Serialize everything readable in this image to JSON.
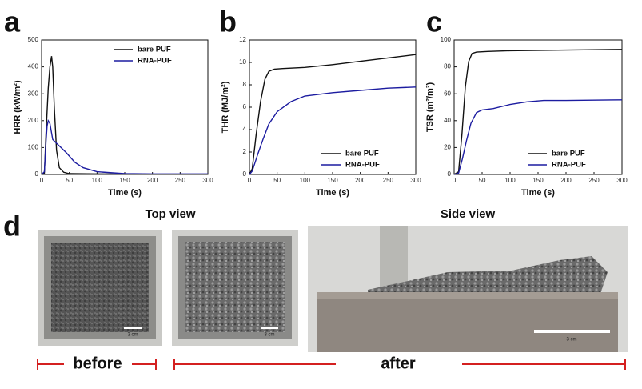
{
  "chart_data": [
    {
      "type": "line",
      "panel": "a",
      "xlabel": "Time (s)",
      "ylabel": "HRR (kW/m²)",
      "xlim": [
        0,
        300
      ],
      "xticks": [
        0,
        50,
        100,
        150,
        200,
        250,
        300
      ],
      "ylim": [
        0,
        500
      ],
      "yticks": [
        0,
        100,
        200,
        300,
        400,
        500
      ],
      "legend": "upper right",
      "series": [
        {
          "name": "bare PUF",
          "color": "#111111",
          "x": [
            0,
            5,
            8,
            12,
            15,
            18,
            20,
            23,
            27,
            32,
            40,
            50,
            100,
            200,
            300
          ],
          "values": [
            0,
            5,
            150,
            320,
            400,
            440,
            400,
            250,
            90,
            25,
            8,
            3,
            2,
            1,
            1
          ]
        },
        {
          "name": "RNA-PUF",
          "color": "#1c1ca0",
          "x": [
            0,
            5,
            8,
            10,
            12,
            15,
            20,
            25,
            35,
            45,
            60,
            75,
            100,
            150,
            200,
            300
          ],
          "values": [
            0,
            10,
            120,
            180,
            200,
            190,
            130,
            120,
            100,
            80,
            45,
            25,
            10,
            3,
            2,
            2
          ]
        }
      ]
    },
    {
      "type": "line",
      "panel": "b",
      "xlabel": "Time (s)",
      "ylabel": "THR (MJ/m²)",
      "xlim": [
        0,
        300
      ],
      "xticks": [
        0,
        50,
        100,
        150,
        200,
        250,
        300
      ],
      "ylim": [
        0,
        12
      ],
      "yticks": [
        0,
        2,
        4,
        6,
        8,
        10,
        12
      ],
      "legend": "lower right",
      "series": [
        {
          "name": "bare PUF",
          "color": "#111111",
          "x": [
            0,
            5,
            12,
            20,
            28,
            35,
            45,
            60,
            100,
            150,
            200,
            250,
            300
          ],
          "values": [
            0,
            0.5,
            3.5,
            6.5,
            8.5,
            9.2,
            9.4,
            9.45,
            9.55,
            9.8,
            10.1,
            10.4,
            10.7
          ]
        },
        {
          "name": "RNA-PUF",
          "color": "#1c1ca0",
          "x": [
            0,
            5,
            15,
            25,
            35,
            50,
            75,
            100,
            150,
            200,
            250,
            300
          ],
          "values": [
            0,
            0.3,
            1.8,
            3.2,
            4.5,
            5.6,
            6.5,
            7.0,
            7.3,
            7.5,
            7.7,
            7.8
          ]
        }
      ]
    },
    {
      "type": "line",
      "panel": "c",
      "xlabel": "Time (s)",
      "ylabel": "TSR (m²/m²)",
      "xlim": [
        0,
        300
      ],
      "xticks": [
        0,
        50,
        100,
        150,
        200,
        250,
        300
      ],
      "ylim": [
        0,
        100
      ],
      "yticks": [
        0,
        20,
        40,
        60,
        80,
        100
      ],
      "legend": "lower right",
      "series": [
        {
          "name": "bare PUF",
          "color": "#111111",
          "x": [
            0,
            8,
            14,
            20,
            26,
            32,
            40,
            60,
            100,
            200,
            300
          ],
          "values": [
            0,
            2,
            30,
            65,
            84,
            90,
            91,
            91.5,
            92,
            92.5,
            93
          ]
        },
        {
          "name": "RNA-PUF",
          "color": "#1c1ca0",
          "x": [
            0,
            8,
            15,
            22,
            30,
            40,
            50,
            70,
            100,
            130,
            160,
            200,
            300
          ],
          "values": [
            0,
            1,
            12,
            25,
            38,
            46,
            48,
            49,
            52,
            54,
            55,
            55,
            55.5
          ]
        }
      ]
    }
  ],
  "figure": {
    "panel_d": "d",
    "top_view": "Top view",
    "side_view": "Side view",
    "before": "before",
    "after": "after",
    "scale_bars": [
      "3 cm",
      "3 cm",
      "3 cm"
    ]
  }
}
